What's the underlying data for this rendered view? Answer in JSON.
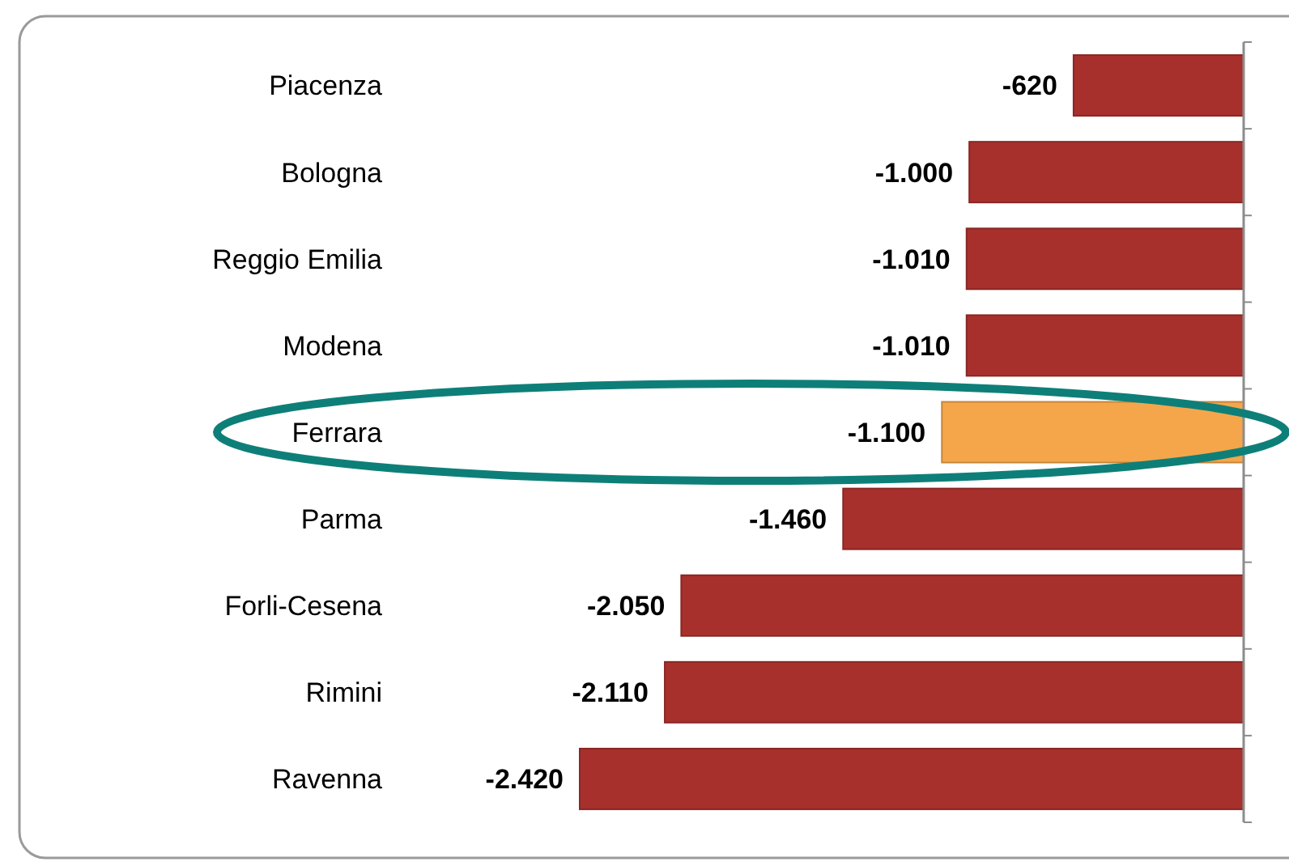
{
  "chart_data": {
    "type": "bar",
    "orientation": "horizontal",
    "categories": [
      "Piacenza",
      "Bologna",
      "Reggio Emilia",
      "Modena",
      "Ferrara",
      "Parma",
      "Forli-Cesena",
      "Rimini",
      "Ravenna"
    ],
    "values": [
      -620,
      -1000,
      -1010,
      -1010,
      -1100,
      -1460,
      -2050,
      -2110,
      -2420
    ],
    "colors": [
      "#a8302c",
      "#a8302c",
      "#a8302c",
      "#a8302c",
      "#f5a64a",
      "#a8302c",
      "#a8302c",
      "#a8302c",
      "#a8302c"
    ],
    "value_labels": [
      "-620",
      "-1.000",
      "-1.010",
      "-1.010",
      "-1.100",
      "-1.460",
      "-2.050",
      "-2.110",
      "-2.420"
    ]
  }
}
